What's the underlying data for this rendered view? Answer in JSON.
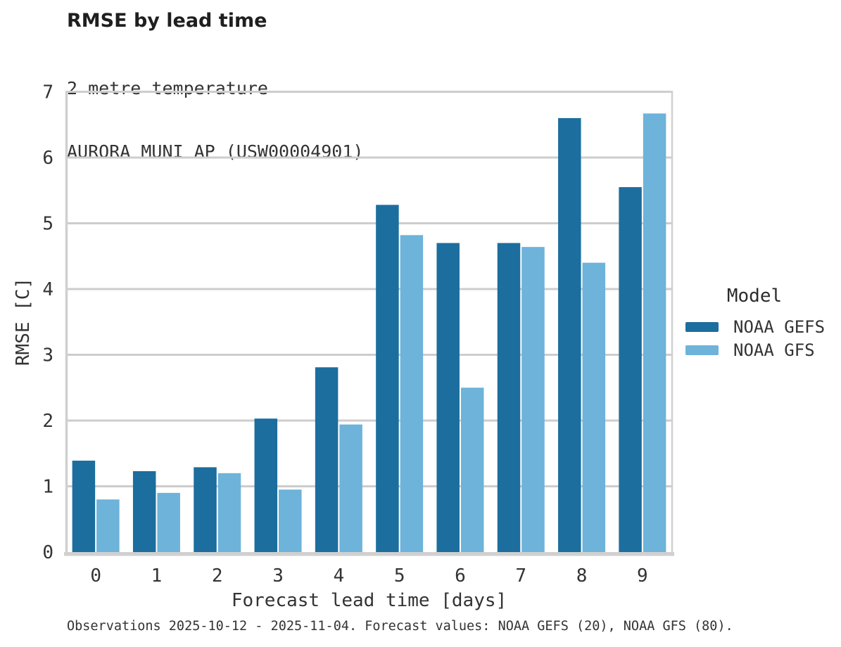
{
  "header": {
    "title": "RMSE by lead time",
    "subtitle_line1": "2 metre temperature",
    "subtitle_line2": "AURORA MUNI AP (USW00004901)"
  },
  "legend": {
    "title": "Model"
  },
  "footer": {
    "note": "Observations 2025-10-12 - 2025-11-04. Forecast values: NOAA GEFS (20), NOAA GFS (80)."
  },
  "colors": {
    "gefs_bar": "#1c6e9e",
    "gfs_bar": "#6db3da",
    "gridline": "#cdcdcd",
    "spine": "#d0d0d0",
    "tick_text": "#333333"
  },
  "chart_data": {
    "type": "bar",
    "title": "RMSE by lead time",
    "subtitle": "2 metre temperature — AURORA MUNI AP (USW00004901)",
    "xlabel": "Forecast lead time [days]",
    "ylabel": "RMSE [C]",
    "categories": [
      "0",
      "1",
      "2",
      "3",
      "4",
      "5",
      "6",
      "7",
      "8",
      "9"
    ],
    "y_ticks": [
      0,
      1,
      2,
      3,
      4,
      5,
      6,
      7
    ],
    "ylim": [
      0,
      7
    ],
    "grid": "horizontal",
    "legend_position": "right",
    "legend_title": "Model",
    "series": [
      {
        "name": "NOAA GEFS",
        "color": "#1c6e9e",
        "values": [
          1.39,
          1.23,
          1.29,
          2.03,
          2.81,
          5.28,
          4.7,
          4.7,
          6.6,
          5.55
        ]
      },
      {
        "name": "NOAA GFS",
        "color": "#6db3da",
        "values": [
          0.8,
          0.9,
          1.2,
          0.95,
          1.94,
          4.82,
          2.5,
          4.64,
          4.4,
          6.67
        ]
      }
    ]
  }
}
